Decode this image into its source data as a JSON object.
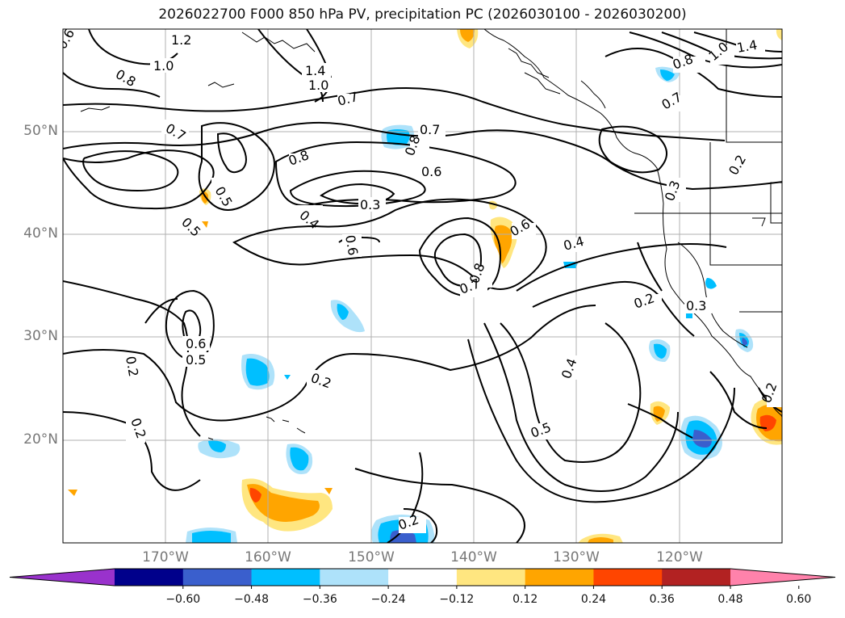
{
  "title": "2026022700 F000 850 hPa PV, precipitation PC (2026030100 - 2026030200)",
  "lat_labels": [
    "50°N",
    "40°N",
    "30°N",
    "20°N"
  ],
  "lon_labels": [
    "170°W",
    "160°W",
    "150°W",
    "140°W",
    "130°W",
    "120°W"
  ],
  "colorbar": {
    "ticks": [
      "−0.60",
      "−0.48",
      "−0.36",
      "−0.24",
      "−0.12",
      "0.12",
      "0.24",
      "0.36",
      "0.48",
      "0.60"
    ],
    "colors": [
      "#9932cc",
      "#00008b",
      "#3a5fcd",
      "#00bfff",
      "#aee2fa",
      "#ffffff",
      "#ffe680",
      "#ffa500",
      "#ff4500",
      "#b22222",
      "#ff82ab"
    ]
  },
  "contour_labels": [
    "1.2",
    "1.0",
    "0.8",
    "0.6",
    "1.4",
    "1.0",
    "0.7",
    "0.7",
    "0.5",
    "0.5",
    "0.8",
    "0.4",
    "0.3",
    "0.7",
    "0.6",
    "0.8",
    "0.6",
    "0.6",
    "0.4",
    "0.8",
    "0.7",
    "0.6",
    "0.5",
    "0.2",
    "0.2",
    "0.2",
    "0.2",
    "0.4",
    "0.5",
    "0.2",
    "0.3",
    "0.3",
    "0.2",
    "0.8",
    "1.4",
    "1.0",
    "0.7",
    "0.2"
  ]
}
